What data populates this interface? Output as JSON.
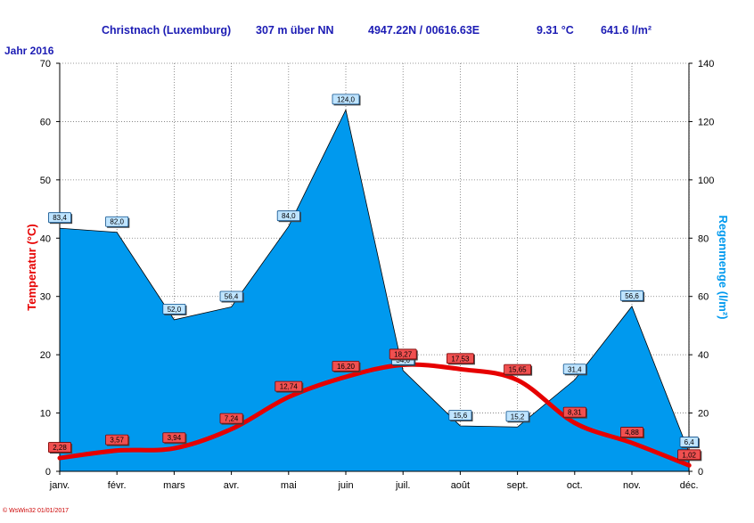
{
  "header": {
    "station": "Christnach (Luxemburg)",
    "elevation": "307 m über NN",
    "coordinates": "4947.22N / 00616.63E",
    "mean_temp": "9.31 °C",
    "total_rain": "641.6 l/m²"
  },
  "year_label": "Jahr  2016",
  "footer": "© WsWin32  01/01/2017",
  "chart_data": {
    "type": "line+area",
    "categories": [
      "janv.",
      "févr.",
      "mars",
      "avr.",
      "mai",
      "juin",
      "juil.",
      "août",
      "sept.",
      "oct.",
      "nov.",
      "déc."
    ],
    "ylabel_left": "Temperatur  (°C)",
    "ylabel_right": "Regenmenge  (l/m²)",
    "ylim_left": [
      0,
      70
    ],
    "ylim_right": [
      0,
      140
    ],
    "yticks_left": [
      "0",
      "10",
      "20",
      "30",
      "40",
      "50",
      "60",
      "70"
    ],
    "yticks_right": [
      "0",
      "20",
      "40",
      "60",
      "80",
      "100",
      "120",
      "140"
    ],
    "grid": true,
    "series": [
      {
        "name": "Temperatur",
        "axis": "left",
        "kind": "line",
        "color": "#e60000",
        "values": [
          2.28,
          3.57,
          3.94,
          7.24,
          12.74,
          16.2,
          18.27,
          17.53,
          15.65,
          8.31,
          4.88,
          1.02
        ],
        "labels": [
          "2,28",
          "3,57",
          "3,94",
          "7,24",
          "12,74",
          "16,20",
          "18,27",
          "17,53",
          "15,65",
          "8,31",
          "4,88",
          "1,02"
        ]
      },
      {
        "name": "Regenmenge",
        "axis": "right",
        "kind": "area",
        "color": "#0099ee",
        "values": [
          83.4,
          82.0,
          52.0,
          56.4,
          84.0,
          124.0,
          34.6,
          15.6,
          15.2,
          31.4,
          56.6,
          6.4
        ],
        "labels": [
          "83,4",
          "82,0",
          "52,0",
          "56,4",
          "84,0",
          "124,0",
          "34,6",
          "15,6",
          "15,2",
          "31,4",
          "56,6",
          "6,4"
        ]
      }
    ]
  }
}
